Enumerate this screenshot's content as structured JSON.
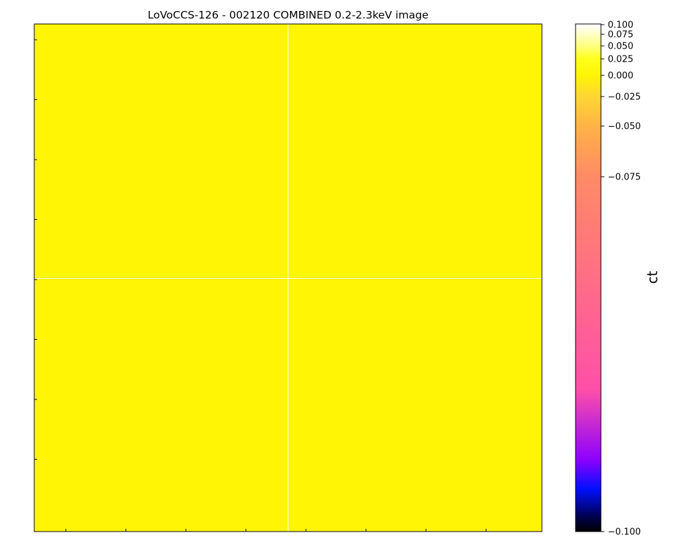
{
  "chart_data": {
    "type": "heatmap",
    "title": "LoVoCCS-126 - 002120 COMBINED 0.2-2.3keV image",
    "image": {
      "pixel_value": 0.0,
      "fill_color": "#fff505",
      "grid_line_color": "#ffffff",
      "grid": true,
      "left_ticks_count": 8,
      "bottom_ticks_count": 8,
      "tick_labels_visible": false
    },
    "colorbar": {
      "label": "ct",
      "vmin": -0.1,
      "vmax": 0.1,
      "scale": "symlog-like (compressed near top)",
      "ticks": [
        {
          "value": 0.1,
          "label": "0.100"
        },
        {
          "value": 0.075,
          "label": "0.075"
        },
        {
          "value": 0.05,
          "label": "0.050"
        },
        {
          "value": 0.025,
          "label": "0.025"
        },
        {
          "value": 0.0,
          "label": "0.000"
        },
        {
          "value": -0.025,
          "label": "−0.025"
        },
        {
          "value": -0.05,
          "label": "−0.050"
        },
        {
          "value": -0.075,
          "label": "−0.075"
        },
        {
          "value": -0.1,
          "label": "−0.100"
        }
      ],
      "colormap": "gnuplot2",
      "gradient_stops": [
        {
          "value": 0.1,
          "color": "#ffffff"
        },
        {
          "value": 0.05,
          "color": "#ffff80"
        },
        {
          "value": 0.025,
          "color": "#ffff1a"
        },
        {
          "value": 0.0,
          "color": "#fff505"
        },
        {
          "value": -0.025,
          "color": "#ffd633"
        },
        {
          "value": -0.05,
          "color": "#ffb347"
        },
        {
          "value": -0.075,
          "color": "#ff8a66"
        },
        {
          "value": -0.09,
          "color": "#ff4fa8"
        },
        {
          "value": -0.095,
          "color": "#8a00ff"
        },
        {
          "value": -0.097,
          "color": "#0010ff"
        },
        {
          "value": -0.099,
          "color": "#00004a"
        },
        {
          "value": -0.1,
          "color": "#000000"
        }
      ]
    }
  }
}
